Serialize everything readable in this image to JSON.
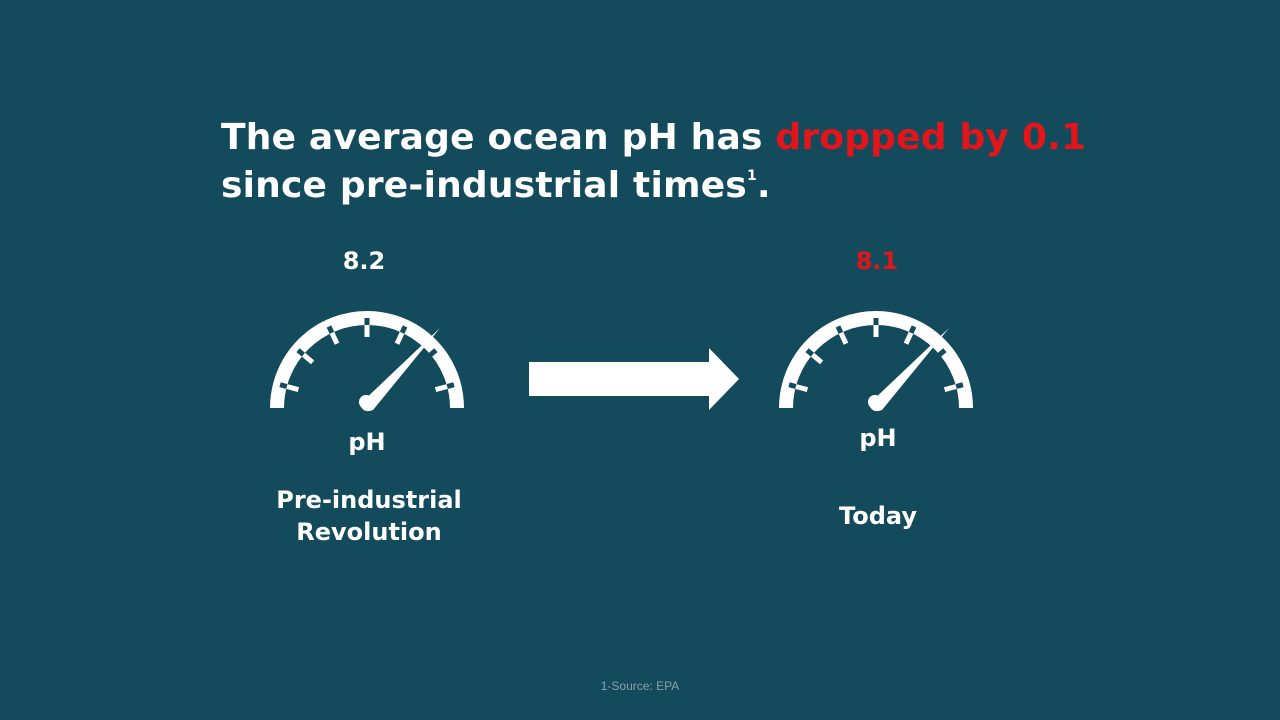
{
  "headline": {
    "before": "The average ocean pH has ",
    "highlight": "dropped by 0.1",
    "after": " since pre-industrial times",
    "sup": "1",
    "end": "."
  },
  "left_gauge": {
    "value": "8.2",
    "unit": "pH",
    "caption_line1": "Pre-industrial",
    "caption_line2": "Revolution"
  },
  "right_gauge": {
    "value": "8.1",
    "unit": "pH",
    "caption": "Today"
  },
  "footnote": "1-Source:  EPA",
  "colors": {
    "background": "#134a5c",
    "accent": "#e3151b",
    "text": "#ffffff"
  },
  "icons": {
    "gauge": "speedometer-icon",
    "arrow": "right-arrow-icon"
  }
}
